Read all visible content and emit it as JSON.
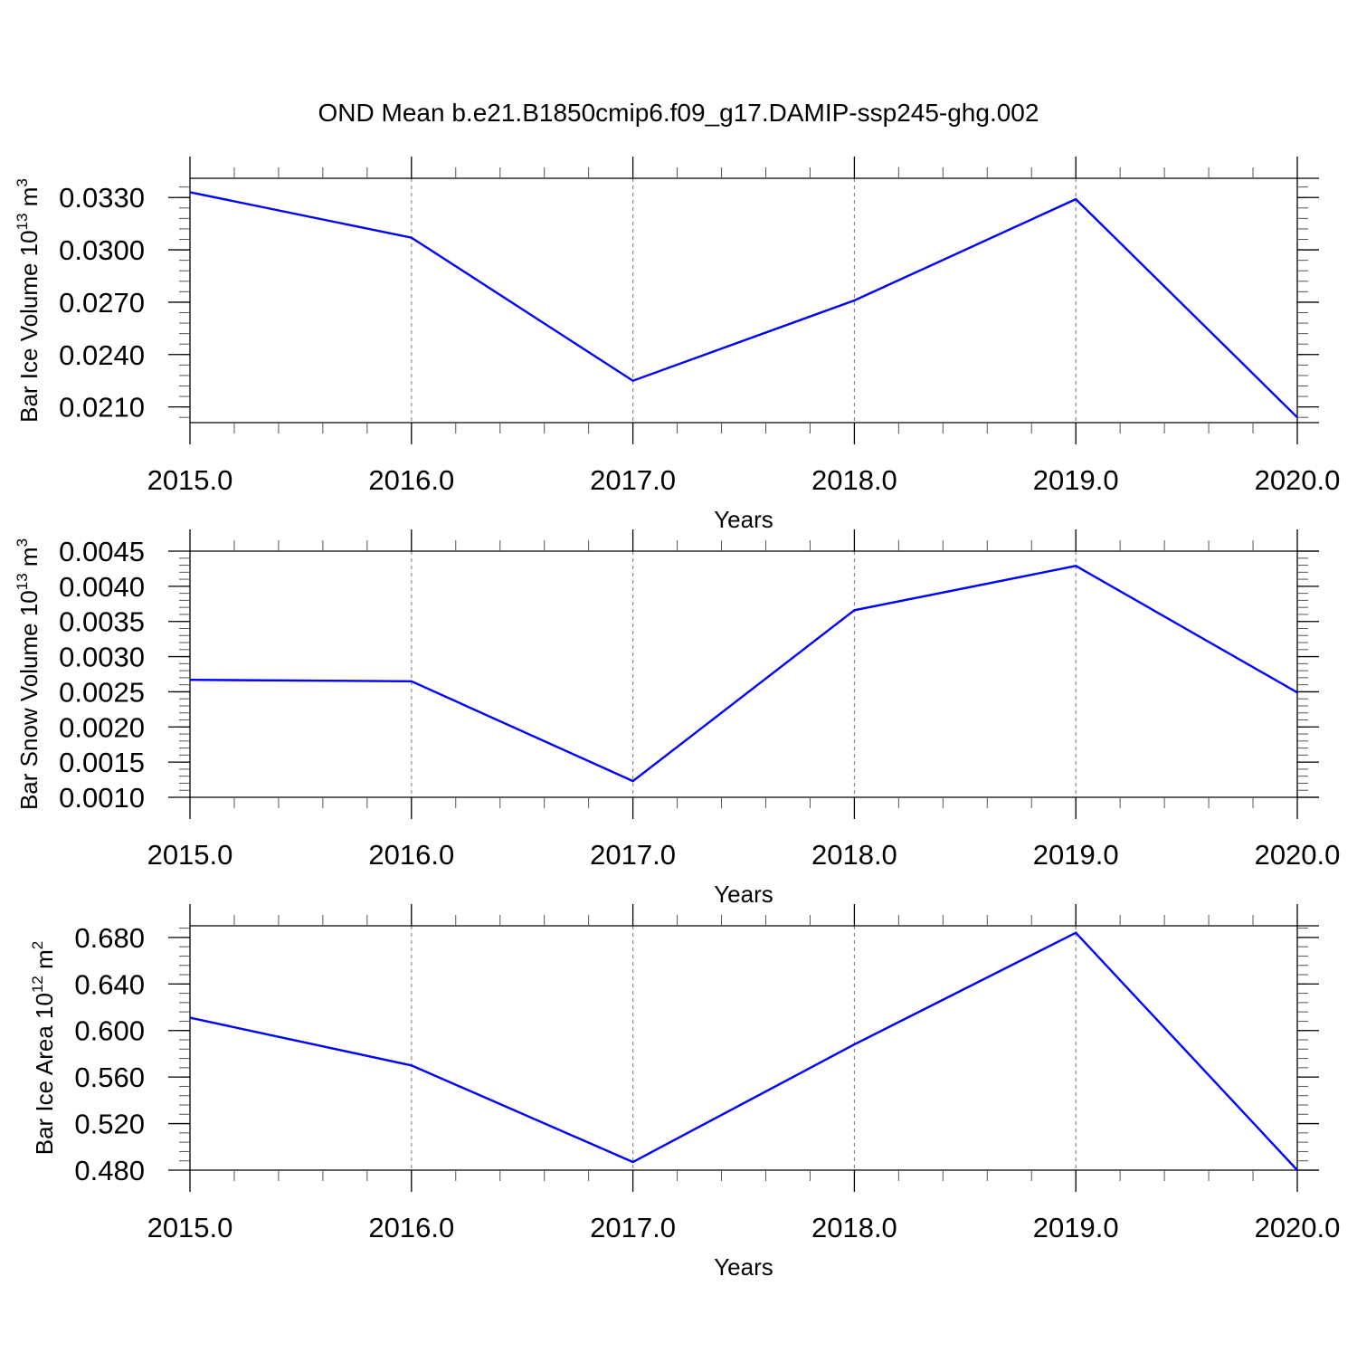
{
  "title": "OND Mean b.e21.B1850cmip6.f09_g17.DAMIP-ssp245-ghg.002",
  "line_color": "#0000ff",
  "chart_data": [
    {
      "type": "line",
      "ylabel_main": "Bar Ice Volume 10",
      "ylabel_exp": "13",
      "ylabel_unit": " m",
      "ylabel_unit_exp": "3",
      "xlabel": "Years",
      "xlim": [
        2015,
        2020
      ],
      "ylim": [
        0.0201,
        0.0341
      ],
      "x": [
        2015,
        2016,
        2017,
        2018,
        2019,
        2020
      ],
      "y": [
        0.0333,
        0.0307,
        0.0225,
        0.0271,
        0.0329,
        0.0204
      ],
      "xticks": [
        "2015.0",
        "2016.0",
        "2017.0",
        "2018.0",
        "2019.0",
        "2020.0"
      ],
      "yticks": [
        "0.0330",
        "0.0300",
        "0.0270",
        "0.0240",
        "0.0210"
      ],
      "ytick_values": [
        0.033,
        0.03,
        0.027,
        0.024,
        0.021
      ],
      "yminor_step": 0.0006,
      "grid": "vertical dashed"
    },
    {
      "type": "line",
      "ylabel_main": "Bar Snow Volume 10",
      "ylabel_exp": "13",
      "ylabel_unit": " m",
      "ylabel_unit_exp": "3",
      "xlabel": "Years",
      "xlim": [
        2015,
        2020
      ],
      "ylim": [
        0.001,
        0.0045
      ],
      "x": [
        2015,
        2016,
        2017,
        2018,
        2019,
        2020
      ],
      "y": [
        0.00267,
        0.00265,
        0.00123,
        0.00366,
        0.00429,
        0.00249
      ],
      "xticks": [
        "2015.0",
        "2016.0",
        "2017.0",
        "2018.0",
        "2019.0",
        "2020.0"
      ],
      "yticks": [
        "0.0045",
        "0.0040",
        "0.0035",
        "0.0030",
        "0.0025",
        "0.0020",
        "0.0015",
        "0.0010"
      ],
      "ytick_values": [
        0.0045,
        0.004,
        0.0035,
        0.003,
        0.0025,
        0.002,
        0.0015,
        0.001
      ],
      "yminor_step": 0.0001,
      "grid": "vertical dashed"
    },
    {
      "type": "line",
      "ylabel_main": "Bar Ice Area 10",
      "ylabel_exp": "12",
      "ylabel_unit": " m",
      "ylabel_unit_exp": "2",
      "xlabel": "Years",
      "xlim": [
        2015,
        2020
      ],
      "ylim": [
        0.48,
        0.69
      ],
      "x": [
        2015,
        2016,
        2017,
        2018,
        2019,
        2020
      ],
      "y": [
        0.611,
        0.57,
        0.487,
        0.588,
        0.684,
        0.48
      ],
      "xticks": [
        "2015.0",
        "2016.0",
        "2017.0",
        "2018.0",
        "2019.0",
        "2020.0"
      ],
      "yticks": [
        "0.680",
        "0.640",
        "0.600",
        "0.560",
        "0.520",
        "0.480"
      ],
      "ytick_values": [
        0.68,
        0.64,
        0.6,
        0.56,
        0.52,
        0.48
      ],
      "yminor_step": 0.008,
      "grid": "vertical dashed"
    }
  ]
}
